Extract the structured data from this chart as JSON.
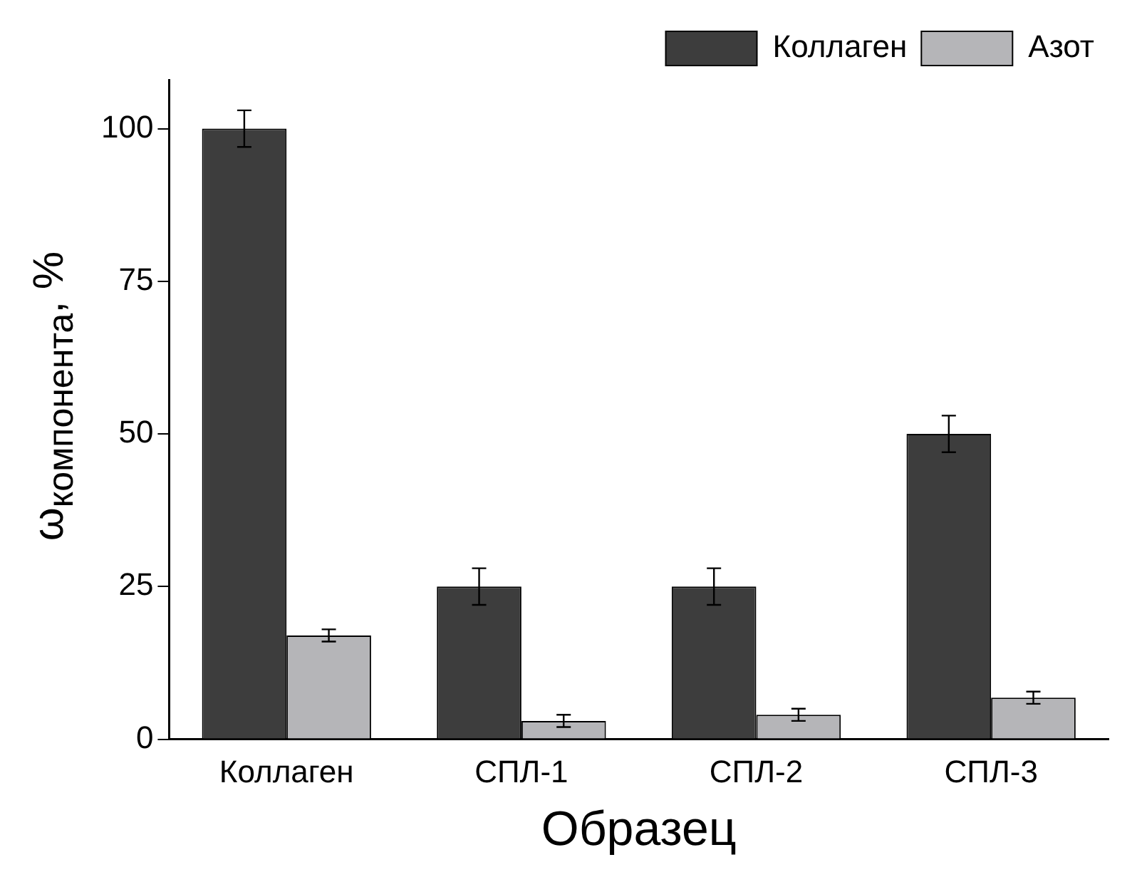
{
  "chart_data": {
    "type": "bar",
    "xlabel": "Образец",
    "ylabel": "ω$_{компонента}$, %",
    "categories": [
      "Коллаген",
      "СПЛ-1",
      "СПЛ-2",
      "СПЛ-3"
    ],
    "series": [
      {
        "name": "Коллаген",
        "color": "#3d3d3d",
        "values": [
          100,
          25,
          25,
          50
        ],
        "errors": [
          3,
          3,
          3,
          3
        ]
      },
      {
        "name": "Азот",
        "color": "#b5b5b8",
        "values": [
          17,
          3,
          4,
          6.8
        ],
        "errors": [
          1,
          1,
          1,
          1
        ]
      }
    ],
    "ylim": [
      0,
      108
    ],
    "yticks": [
      0,
      25,
      50,
      75,
      100
    ],
    "grid": false,
    "legend": "top right"
  }
}
